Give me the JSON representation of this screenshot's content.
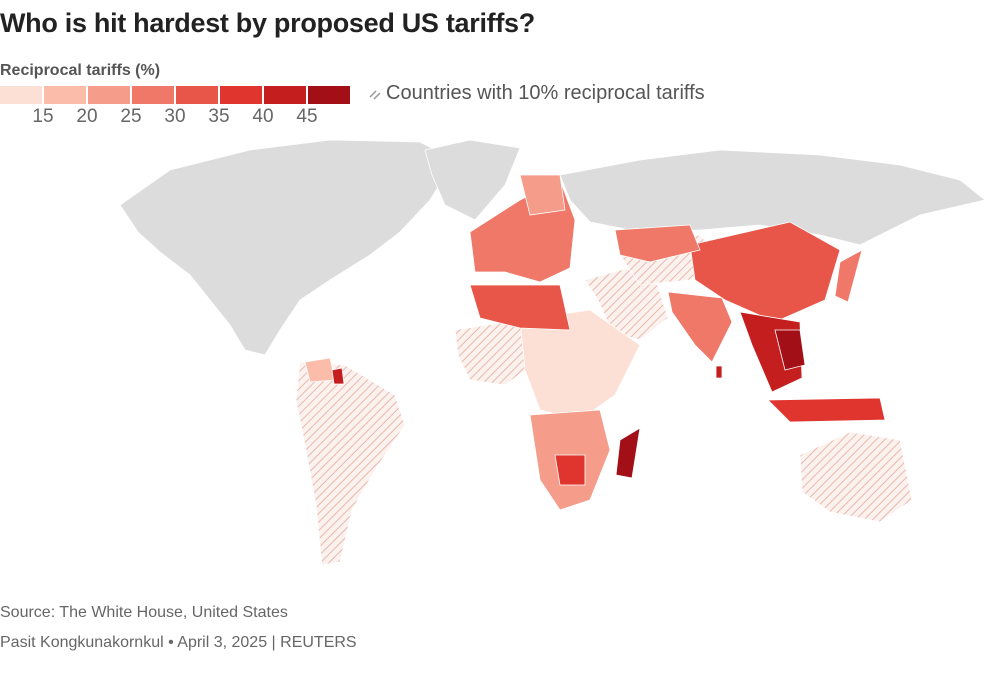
{
  "title": "Who is hit hardest by proposed US tariffs?",
  "legend": {
    "title": "Reciprocal tariffs (%)",
    "bins": [
      "#fde0d5",
      "#fbbcaa",
      "#f59c8a",
      "#ef7868",
      "#e8564a",
      "#e0352f",
      "#c41e1f",
      "#a30f16"
    ],
    "ticks": [
      "15",
      "20",
      "25",
      "30",
      "35",
      "40",
      "45"
    ],
    "hatch_label": "Countries with 10% reciprocal tariffs",
    "hatch_color": "#e8b9ab",
    "no_data_color": "#dcdcdc"
  },
  "source": "Source: The White House, United States",
  "credit": "Pasit Kongkunakornkul • April 3, 2025 | REUTERS"
}
